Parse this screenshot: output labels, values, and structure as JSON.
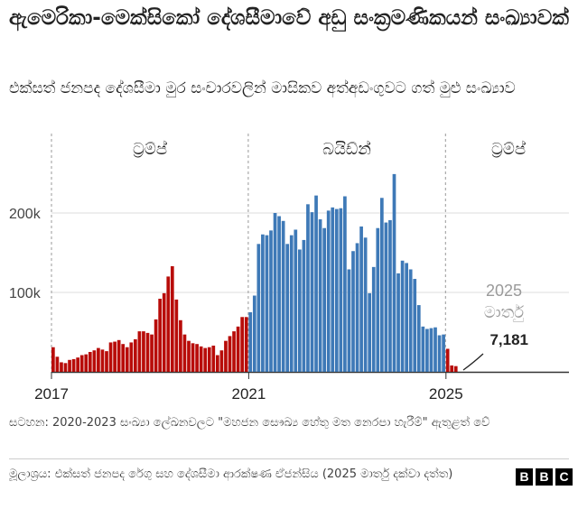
{
  "header": {
    "title": "ඇමෙරිකා-මෙක්සිකෝ දේශසීමාවේ අඩු සංක්‍රමණිකයන් සංඛ්‍යාවක්",
    "subtitle": "එක්සත් ජනපද දේශසීමා මුර සංචාරවලින් මාසිකව අත්අඩංගුවට ගත් මුළු සංඛ්‍යාව"
  },
  "chart_data": {
    "type": "bar",
    "x_start": "2017-01",
    "frequency": "monthly",
    "xtick_labels": [
      "2017",
      "2021",
      "2025"
    ],
    "ytick_labels": [
      "100k",
      "200k"
    ],
    "ylim": [
      0,
      260000
    ],
    "grid": true,
    "periods": [
      {
        "label": "ට්‍රම්ප්",
        "color": "#b80c09"
      },
      {
        "label": "බයිඩ්න්",
        "color": "#3e79b7"
      },
      {
        "label": "ට්‍රම්ප්",
        "color": "#b80c09"
      }
    ],
    "series": [
      {
        "period": 0,
        "start": "2017-01",
        "values": [
          31000,
          19000,
          12000,
          11000,
          15000,
          16000,
          18000,
          21000,
          22000,
          25000,
          27000,
          30000,
          28000,
          26000,
          37000,
          38000,
          40000,
          35000,
          31000,
          37000,
          41000,
          51000,
          51000,
          49000,
          47000,
          66000,
          92000,
          99000,
          120000,
          133000,
          91000,
          65000,
          47000,
          39000,
          36000,
          35000,
          32000,
          30000,
          31000,
          33000,
          21000,
          27000,
          39000,
          45000,
          51000,
          57000,
          69000,
          69000
        ]
      },
      {
        "period": 1,
        "start": "2021-01",
        "values": [
          75000,
          96000,
          161000,
          173000,
          172000,
          178000,
          200000,
          196000,
          190000,
          161000,
          172000,
          179000,
          154000,
          166000,
          211000,
          201000,
          222000,
          192000,
          181000,
          203000,
          207000,
          205000,
          206000,
          221000,
          129000,
          152000,
          162000,
          183000,
          169000,
          99000,
          132000,
          181000,
          219000,
          188000,
          191000,
          249000,
          124000,
          140000,
          137000,
          129000,
          117000,
          84000,
          57000,
          54000,
          55000,
          56000,
          46000,
          47000
        ]
      },
      {
        "period": 2,
        "start": "2025-01",
        "values": [
          29000,
          8000,
          7181
        ]
      }
    ],
    "annotation": {
      "label": "2025 මාර්තු",
      "value_label": "7,181"
    }
  },
  "footer": {
    "note": "සටහන: 2020-2023 සංඛ්‍යා ලේඛනවලට \"මහජන සෞඛ්‍ය හේතු මත නෙරපා හැරීම්\" ඇතුළත් වේ",
    "source": "මූලාශ්‍රය: එක්සත් ජනපද රේගු සහ දේශසීමා ආරක්ෂණ ඒජන්සිය (2025 මාර්තු දක්වා දත්ත)",
    "logo": [
      "B",
      "B",
      "C"
    ]
  }
}
